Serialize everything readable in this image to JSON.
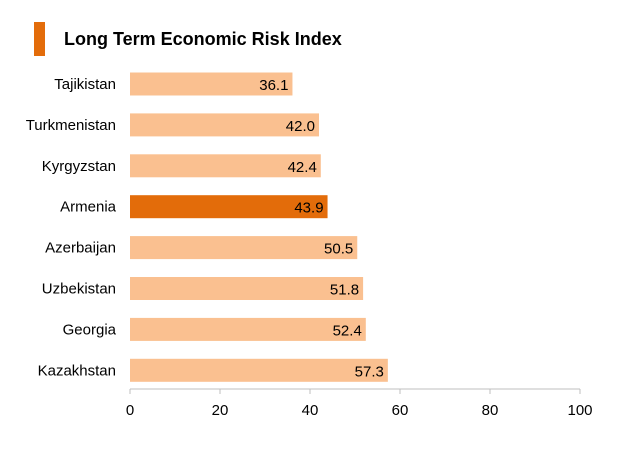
{
  "chart_data": {
    "type": "bar",
    "orientation": "horizontal",
    "title": "Long Term Economic Risk Index",
    "categories": [
      "Tajikistan",
      "Turkmenistan",
      "Kyrgyzstan",
      "Armenia",
      "Azerbaijan",
      "Uzbekistan",
      "Georgia",
      "Kazakhstan"
    ],
    "values": [
      36.1,
      42.0,
      42.4,
      43.9,
      50.5,
      51.8,
      52.4,
      57.3
    ],
    "value_labels": [
      "36.1",
      "42.0",
      "42.4",
      "43.9",
      "50.5",
      "51.8",
      "52.4",
      "57.3"
    ],
    "highlight_index": 3,
    "xlim": [
      0,
      100
    ],
    "x_ticks": [
      0,
      20,
      40,
      60,
      80,
      100
    ],
    "xlabel": "",
    "ylabel": "",
    "grid": false,
    "colors": {
      "bar": "#fac090",
      "highlight": "#e36c0a",
      "title_accent": "#e36c0a",
      "axis": "#bfbfbf"
    }
  }
}
